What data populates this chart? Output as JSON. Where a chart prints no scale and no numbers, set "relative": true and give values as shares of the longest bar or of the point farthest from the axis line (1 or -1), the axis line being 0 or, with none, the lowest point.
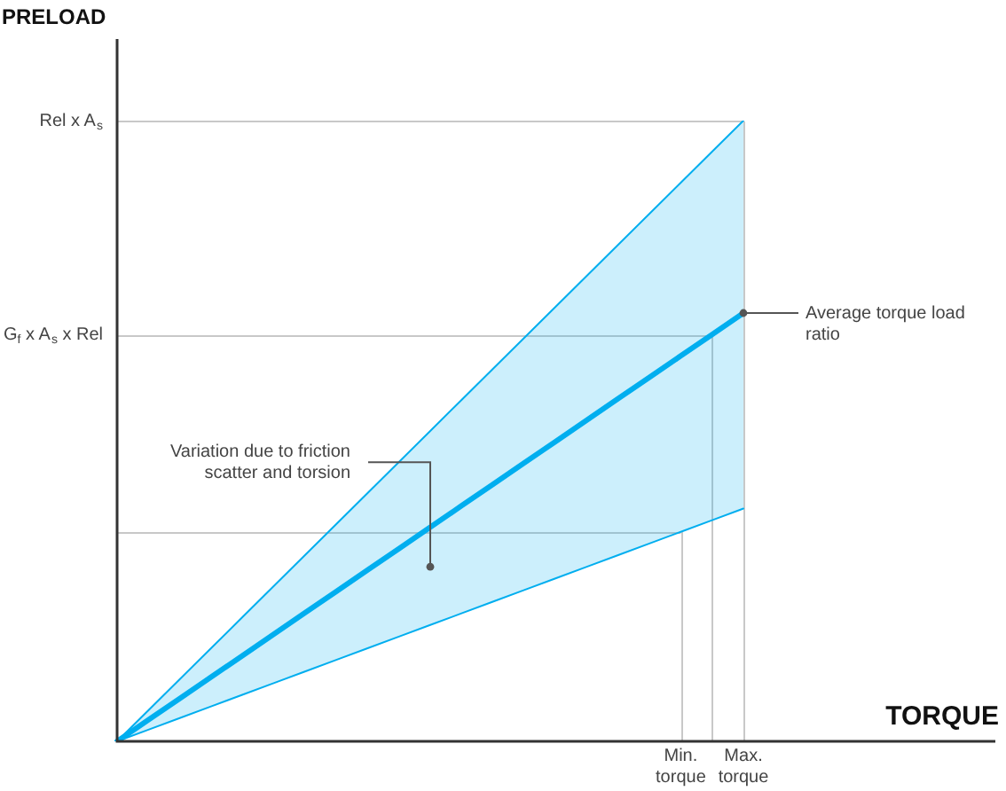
{
  "chart_data": {
    "type": "line",
    "relative": true,
    "xlabel": "TORQUE",
    "ylabel": "PRELOAD",
    "categories": [
      null,
      null,
      null,
      null,
      null,
      null,
      null,
      null,
      null,
      null,
      null,
      null,
      null,
      null,
      null,
      null,
      null,
      null,
      "Min. torque",
      null,
      "Max. torque"
    ],
    "series": [
      {
        "color": "#00aeef",
        "values": [
          0,
          0.05,
          0.1,
          0.15,
          0.2,
          0.25,
          0.3,
          0.35,
          0.4,
          0.45,
          0.5,
          0.55,
          0.6,
          0.65,
          0.7,
          0.75,
          0.8,
          0.85,
          0.9,
          0.95,
          1
        ]
      },
      {
        "color": "#00aeef",
        "values": [
          0,
          0.0345,
          0.069,
          0.1035,
          0.138,
          0.1725,
          0.207,
          0.2415,
          0.276,
          0.3105,
          0.345,
          0.3795,
          0.414,
          0.4485,
          0.483,
          0.5175,
          0.552,
          0.5865,
          0.621,
          0.6555,
          0.69
        ],
        "lower": [
          0,
          0.01875,
          0.0375,
          0.05625,
          0.075,
          0.09375,
          0.1125,
          0.13125,
          0.15,
          0.16875,
          0.1875,
          0.20625,
          0.225,
          0.24375,
          0.2625,
          0.28125,
          0.3,
          0.31875,
          0.3375,
          0.35625,
          0.375
        ],
        "upper": [
          0,
          0.05,
          0.1,
          0.15,
          0.2,
          0.25,
          0.3,
          0.35,
          0.4,
          0.45,
          0.5,
          0.55,
          0.6,
          0.65,
          0.7,
          0.75,
          0.8,
          0.85,
          0.9,
          0.95,
          1
        ]
      },
      {
        "color": "#00aeef",
        "values": [
          0,
          0.01875,
          0.0375,
          0.05625,
          0.075,
          0.09375,
          0.1125,
          0.13125,
          0.15,
          0.16875,
          0.1875,
          0.20625,
          0.225,
          0.24375,
          0.2625,
          0.28125,
          0.3,
          0.31875,
          0.3375,
          0.35625,
          0.375
        ]
      }
    ],
    "ref_lines": [
      {
        "axis": "y",
        "value": 1,
        "label": "Rel x A$_{s}$",
        "color": "#c8c8c8"
      },
      {
        "axis": "y",
        "value": 0.6555,
        "label": "G$_{f}$ x A$_{s}$ x Rel",
        "color": "#c8c8c8"
      },
      {
        "axis": "y",
        "value": 0.3375,
        "label": null,
        "color": "#c8c8c8"
      },
      {
        "axis": "x",
        "value": "Min. torque",
        "label": null,
        "color": "#c8c8c8"
      }
    ],
    "legend": false,
    "marker": "none",
    "line_style": "solid",
    "annotations": [
      "Variation due to friction scatter and torsion",
      {
        "text": "Average torque load ratio",
        "x": "Max. torque",
        "y": 0.69
      }
    ]
  }
}
